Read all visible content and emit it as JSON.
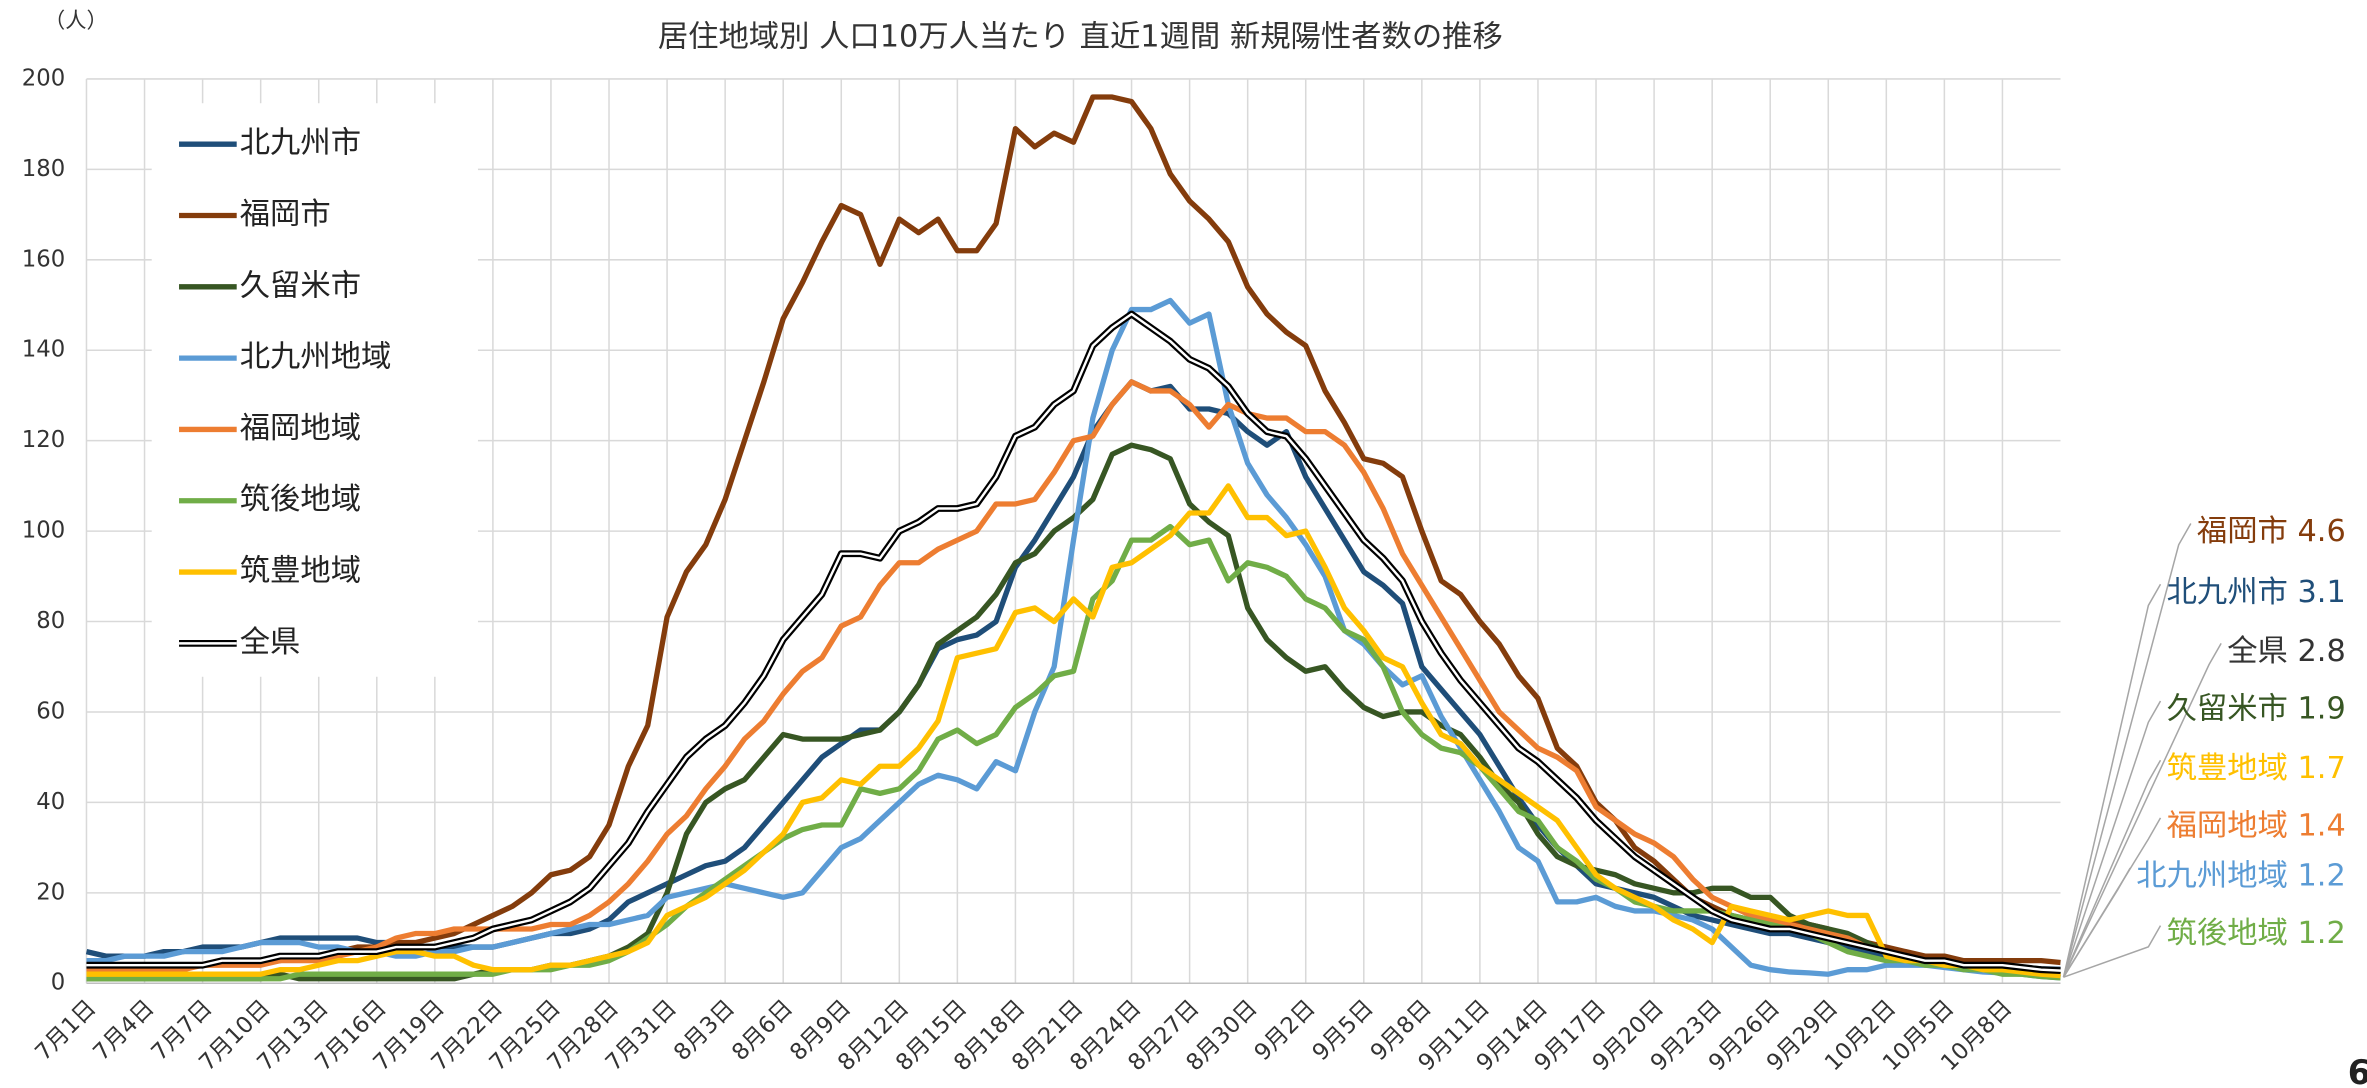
{
  "chart_data": {
    "type": "line",
    "title": "居住地域別 人口10万人当たり 直近1週間 新規陽性者数の推移",
    "y_unit": "（人）",
    "page_number": "6",
    "grid": true,
    "legend": "upper-left",
    "ylim": [
      0,
      200
    ],
    "yticks": [
      0,
      20,
      40,
      60,
      80,
      100,
      120,
      140,
      160,
      180,
      200
    ],
    "categories": [
      "7月1日",
      null,
      null,
      "7月4日",
      null,
      null,
      "7月7日",
      null,
      null,
      "7月10日",
      null,
      null,
      "7月13日",
      null,
      null,
      "7月16日",
      null,
      null,
      "7月19日",
      null,
      null,
      "7月22日",
      null,
      null,
      "7月25日",
      null,
      null,
      "7月28日",
      null,
      null,
      "7月31日",
      null,
      null,
      "8月3日",
      null,
      null,
      "8月6日",
      null,
      null,
      "8月9日",
      null,
      null,
      "8月12日",
      null,
      null,
      "8月15日",
      null,
      null,
      "8月18日",
      null,
      null,
      "8月21日",
      null,
      null,
      "8月24日",
      null,
      null,
      "8月27日",
      null,
      null,
      "8月30日",
      null,
      null,
      "9月2日",
      null,
      null,
      "9月5日",
      null,
      null,
      "9月8日",
      null,
      null,
      "9月11日",
      null,
      null,
      "9月14日",
      null,
      null,
      "9月17日",
      null,
      null,
      "9月20日",
      null,
      null,
      "9月23日",
      null,
      null,
      "9月26日",
      null,
      null,
      "9月29日",
      null,
      null,
      "10月2日",
      null,
      null,
      "10月5日",
      null,
      null,
      "10月8日",
      null,
      null,
      null
    ],
    "series": [
      {
        "name": "北九州市",
        "color": "#1f4e79",
        "values": [
          7,
          6,
          6,
          6,
          7,
          7,
          8,
          8,
          8,
          9,
          10,
          10,
          10,
          10,
          10,
          9,
          9,
          8,
          8,
          8,
          8,
          8,
          9,
          10,
          11,
          11,
          12,
          14,
          18,
          20,
          22,
          24,
          26,
          27,
          30,
          35,
          40,
          45,
          50,
          53,
          56,
          56,
          60,
          66,
          74,
          76,
          77,
          80,
          92,
          98,
          105,
          112,
          122,
          128,
          133,
          131,
          132,
          127,
          127,
          126,
          122,
          119,
          122,
          112,
          105,
          98,
          91,
          88,
          84,
          70,
          65,
          60,
          55,
          48,
          41,
          35,
          30,
          26,
          22,
          21,
          20,
          19,
          17,
          15,
          14,
          13,
          12,
          11,
          11,
          10,
          9,
          8,
          7,
          6,
          5,
          5,
          4,
          4,
          4,
          4,
          3.5,
          3.2,
          3.1
        ]
      },
      {
        "name": "福岡市",
        "color": "#843c0c",
        "values": [
          4,
          4,
          4,
          4,
          4,
          4,
          4,
          5,
          5,
          5,
          5,
          6,
          6,
          7,
          8,
          8,
          9,
          9,
          10,
          11,
          13,
          15,
          17,
          20,
          24,
          25,
          28,
          35,
          48,
          57,
          81,
          91,
          97,
          107,
          120,
          133,
          147,
          155,
          164,
          172,
          170,
          159,
          169,
          166,
          169,
          162,
          162,
          168,
          189,
          185,
          188,
          186,
          196,
          196,
          195,
          189,
          179,
          173,
          169,
          164,
          154,
          148,
          144,
          141,
          131,
          124,
          116,
          115,
          112,
          100,
          89,
          86,
          80,
          75,
          68,
          63,
          52,
          48,
          40,
          36,
          30,
          27,
          23,
          19,
          17,
          15,
          14,
          14,
          14,
          13,
          12,
          10,
          9,
          8,
          7,
          6,
          6,
          5,
          5,
          5,
          5,
          5,
          4.6
        ]
      },
      {
        "name": "久留米市",
        "color": "#375623",
        "values": [
          1,
          1,
          1,
          1,
          1,
          1,
          1,
          1,
          1,
          1,
          2,
          1,
          1,
          1,
          1,
          1,
          1,
          1,
          1,
          1,
          2,
          3,
          3,
          3,
          4,
          4,
          5,
          6,
          8,
          11,
          20,
          33,
          40,
          43,
          45,
          50,
          55,
          54,
          54,
          54,
          55,
          56,
          60,
          66,
          75,
          78,
          81,
          86,
          93,
          95,
          100,
          103,
          107,
          117,
          119,
          118,
          116,
          106,
          102,
          99,
          83,
          76,
          72,
          69,
          70,
          65,
          61,
          59,
          60,
          60,
          57,
          55,
          50,
          44,
          40,
          33,
          28,
          26,
          25,
          24,
          22,
          21,
          20,
          20,
          21,
          21,
          19,
          19,
          15,
          13,
          12,
          11,
          9,
          7,
          6,
          5,
          5,
          4,
          4,
          3,
          3,
          2.5,
          1.9
        ]
      },
      {
        "name": "北九州地域",
        "color": "#5b9bd5",
        "values": [
          5,
          5,
          6,
          6,
          6,
          7,
          7,
          7,
          8,
          9,
          9,
          9,
          8,
          8,
          7,
          7,
          6,
          6,
          7,
          7,
          8,
          8,
          9,
          10,
          11,
          12,
          13,
          13,
          14,
          15,
          19,
          20,
          21,
          22,
          21,
          20,
          19,
          20,
          25,
          30,
          32,
          36,
          40,
          44,
          46,
          45,
          43,
          49,
          47,
          60,
          70,
          98,
          125,
          140,
          149,
          149,
          151,
          146,
          148,
          128,
          115,
          108,
          103,
          97,
          90,
          78,
          75,
          70,
          66,
          68,
          59,
          52,
          45,
          38,
          30,
          27,
          18,
          18,
          19,
          17,
          16,
          16,
          15,
          14,
          12,
          8,
          4,
          3,
          2.5,
          2.3,
          2,
          3,
          3,
          4,
          4,
          4,
          3.5,
          3,
          2.5,
          2.3,
          2,
          1.5,
          1.2
        ]
      },
      {
        "name": "福岡地域",
        "color": "#ed7d31",
        "values": [
          3,
          3,
          3,
          3,
          3,
          3,
          4,
          4,
          4,
          4,
          5,
          5,
          5,
          6,
          7,
          8,
          10,
          11,
          11,
          12,
          12,
          12,
          12,
          12,
          13,
          13,
          15,
          18,
          22,
          27,
          33,
          37,
          43,
          48,
          54,
          58,
          64,
          69,
          72,
          79,
          81,
          88,
          93,
          93,
          96,
          98,
          100,
          106,
          106,
          107,
          113,
          120,
          121,
          128,
          133,
          131,
          131,
          128,
          123,
          128,
          126,
          125,
          125,
          122,
          122,
          119,
          113,
          105,
          95,
          88,
          81,
          74,
          67,
          60,
          56,
          52,
          50,
          47,
          39,
          36,
          33,
          31,
          28,
          23,
          19,
          17,
          15,
          14,
          13,
          12,
          11,
          10,
          8,
          7,
          6,
          5,
          5,
          4,
          4,
          3,
          2.5,
          2,
          1.4
        ]
      },
      {
        "name": "筑後地域",
        "color": "#70ad47",
        "values": [
          1,
          1,
          1,
          1,
          1,
          1,
          1,
          1,
          1,
          1,
          1,
          2,
          2,
          2,
          2,
          2,
          2,
          2,
          2,
          2,
          2,
          2,
          3,
          3,
          3,
          4,
          4,
          5,
          7,
          10,
          13,
          17,
          20,
          23,
          26,
          29,
          32,
          34,
          35,
          35,
          43,
          42,
          43,
          47,
          54,
          56,
          53,
          55,
          61,
          64,
          68,
          69,
          85,
          89,
          98,
          98,
          101,
          97,
          98,
          89,
          93,
          92,
          90,
          85,
          83,
          78,
          76,
          70,
          60,
          55,
          52,
          51,
          48,
          43,
          38,
          36,
          30,
          27,
          23,
          21,
          18,
          17,
          16,
          16,
          16,
          15,
          14,
          13,
          12,
          11,
          9,
          7,
          6,
          5,
          5,
          4,
          4,
          3,
          3,
          2,
          2,
          1.5,
          1.2
        ]
      },
      {
        "name": "筑豊地域",
        "color": "#ffc000",
        "values": [
          2,
          2,
          2,
          2,
          2,
          2,
          2,
          2,
          2,
          2,
          3,
          3,
          4,
          5,
          5,
          6,
          7,
          7,
          6,
          6,
          4,
          3,
          3,
          3,
          4,
          4,
          5,
          6,
          7,
          9,
          15,
          17,
          19,
          22,
          25,
          29,
          33,
          40,
          41,
          45,
          44,
          48,
          48,
          52,
          58,
          72,
          73,
          74,
          82,
          83,
          80,
          85,
          81,
          92,
          93,
          96,
          99,
          104,
          104,
          110,
          103,
          103,
          99,
          100,
          92,
          83,
          78,
          72,
          70,
          62,
          55,
          53,
          48,
          45,
          42,
          39,
          36,
          30,
          24,
          21,
          19,
          17,
          14,
          12,
          9,
          17,
          16,
          15,
          14,
          15,
          16,
          15,
          15,
          6,
          5,
          5,
          4,
          4,
          3,
          3,
          2.5,
          2,
          1.7
        ]
      },
      {
        "name": "全県",
        "color": "#000000",
        "double_line": true,
        "values": [
          4,
          4,
          4,
          4,
          4,
          4,
          4,
          5,
          5,
          5,
          6,
          6,
          6,
          7,
          7,
          7,
          8,
          8,
          8,
          9,
          10,
          12,
          13,
          14,
          16,
          18,
          21,
          26,
          31,
          38,
          44,
          50,
          54,
          57,
          62,
          68,
          76,
          81,
          86,
          95,
          95,
          94,
          100,
          102,
          105,
          105,
          106,
          112,
          121,
          123,
          128,
          131,
          141,
          145,
          148,
          145,
          142,
          138,
          136,
          132,
          126,
          122,
          121,
          116,
          110,
          104,
          98,
          94,
          89,
          80,
          73,
          67,
          62,
          57,
          52,
          49,
          45,
          41,
          36,
          32,
          28,
          25,
          22,
          19,
          16,
          14,
          13,
          12,
          12,
          11,
          10,
          9,
          8,
          7,
          6,
          5,
          5,
          4,
          4,
          4,
          3.5,
          3,
          2.8
        ]
      }
    ],
    "annotations": [
      {
        "text": "福岡市 4.6",
        "color": "#843c0c"
      },
      {
        "text": "北九州市 3.1",
        "color": "#1f4e79"
      },
      {
        "text": "全県 2.8",
        "color": "#333333"
      },
      {
        "text": "久留米市 1.9",
        "color": "#375623"
      },
      {
        "text": "筑豊地域 1.7",
        "color": "#ffc000"
      },
      {
        "text": "福岡地域 1.4",
        "color": "#ed7d31"
      },
      {
        "text": "北九州地域 1.2",
        "color": "#5b9bd5"
      },
      {
        "text": "筑後地域 1.2",
        "color": "#70ad47"
      }
    ]
  }
}
